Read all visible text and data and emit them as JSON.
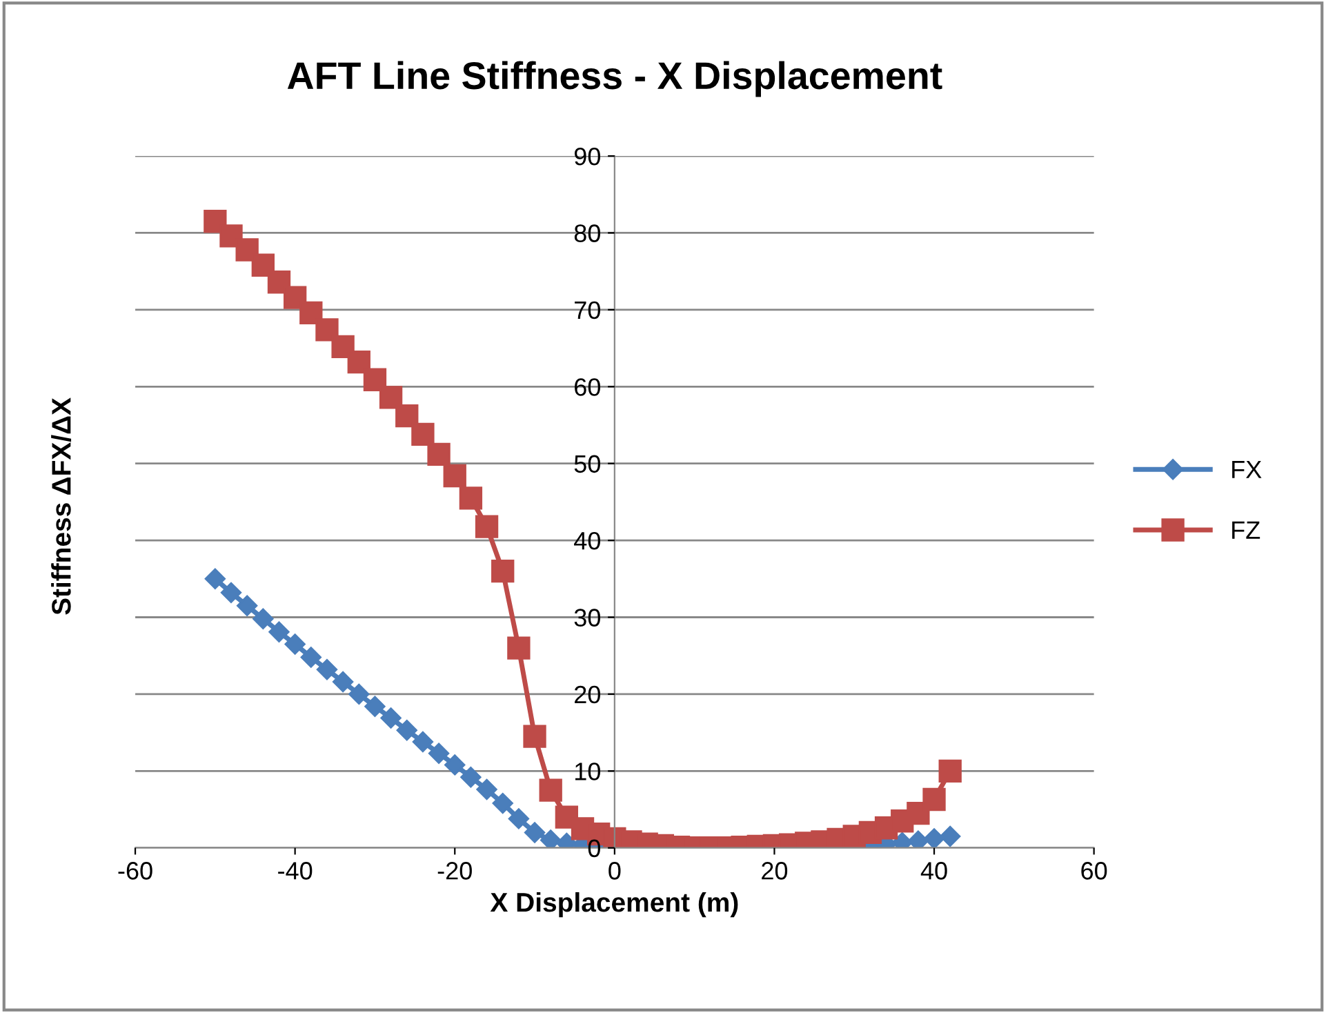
{
  "chart_data": {
    "type": "line",
    "title": "AFT Line Stiffness - X Displacement",
    "xlabel": "X Displacement (m)",
    "ylabel": "Stiffness ΔFX/ΔX",
    "xlim": [
      -60,
      60
    ],
    "xticks": [
      -60,
      -40,
      -20,
      0,
      20,
      40,
      60
    ],
    "ylim": [
      0,
      90
    ],
    "yticks": [
      0,
      10,
      20,
      30,
      40,
      50,
      60,
      70,
      80,
      90
    ],
    "grid": "y",
    "legend": "right",
    "x": [
      -50,
      -48,
      -46,
      -44,
      -42,
      -40,
      -38,
      -36,
      -34,
      -32,
      -30,
      -28,
      -26,
      -24,
      -22,
      -20,
      -18,
      -16,
      -14,
      -12,
      -10,
      -8,
      -6,
      -4,
      -2,
      0,
      2,
      4,
      6,
      8,
      10,
      12,
      14,
      16,
      18,
      20,
      22,
      24,
      26,
      28,
      30,
      32,
      34,
      36,
      38,
      40,
      42
    ],
    "series": [
      {
        "name": "FX",
        "color": "#4a7ebb",
        "marker": "diamond",
        "values": [
          35.0,
          33.2,
          31.5,
          29.8,
          28.1,
          26.5,
          24.8,
          23.2,
          21.6,
          20.0,
          18.4,
          16.9,
          15.3,
          13.8,
          12.3,
          10.8,
          9.2,
          7.6,
          5.8,
          3.8,
          2.0,
          1.0,
          0.6,
          0.4,
          0.3,
          0.2,
          0.1,
          0,
          0,
          0,
          0,
          0,
          0,
          0,
          0,
          0,
          0,
          0,
          0,
          0.1,
          0.2,
          0.3,
          0.5,
          0.7,
          0.9,
          1.2,
          1.5
        ]
      },
      {
        "name": "FZ",
        "color": "#be4b48",
        "marker": "square",
        "values": [
          81.5,
          79.6,
          77.8,
          75.8,
          73.6,
          71.6,
          69.6,
          67.4,
          65.2,
          63.2,
          60.9,
          58.6,
          56.2,
          53.8,
          51.2,
          48.4,
          45.5,
          41.8,
          36,
          26,
          14.5,
          7.5,
          4,
          2.5,
          1.8,
          1.2,
          0.8,
          0.5,
          0.3,
          0.1,
          0,
          0,
          0,
          0.1,
          0.2,
          0.3,
          0.4,
          0.6,
          0.8,
          1.1,
          1.5,
          2,
          2.6,
          3.5,
          4.5,
          6.3,
          10
        ]
      }
    ]
  }
}
